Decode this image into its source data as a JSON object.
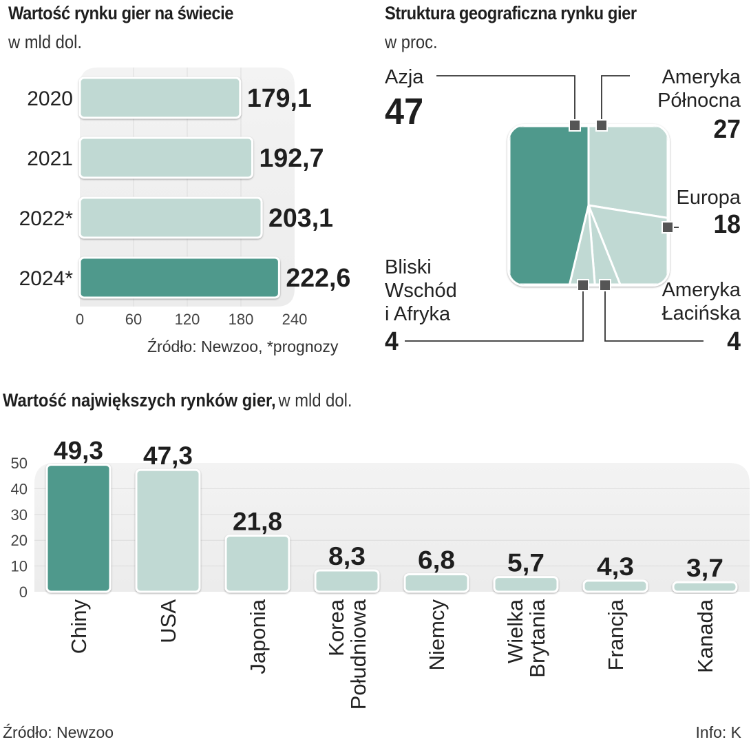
{
  "colors": {
    "highlight": "#4f998c",
    "normal": "#c0d9d3",
    "panel": "#efefef",
    "grid": "#dcdcdc",
    "marker": "#555555"
  },
  "chart_data": [
    {
      "type": "bar",
      "orientation": "horizontal",
      "title": "Wartość rynku gier na świecie",
      "subtitle": "w mld dol.",
      "categories": [
        "2020",
        "2021",
        "2022*",
        "2024*"
      ],
      "values": [
        179.1,
        192.7,
        203.1,
        222.6
      ],
      "value_labels": [
        "179,1",
        "192,7",
        "203,1",
        "222,6"
      ],
      "highlight_index": 3,
      "xlim": [
        0,
        240
      ],
      "xticks": [
        "0",
        "60",
        "120",
        "180",
        "240"
      ],
      "grid": true,
      "source": "Źródło: Newzoo, *prognozy"
    },
    {
      "type": "pie",
      "shape": "rounded-square",
      "title": "Struktura geograficzna rynku gier",
      "subtitle": "w proc.",
      "slices": [
        {
          "name": "Azja",
          "lines": [
            "Azja"
          ],
          "value": 47,
          "label": "47",
          "highlight": true
        },
        {
          "name": "Ameryka Północna",
          "lines": [
            "Ameryka",
            "Północna"
          ],
          "value": 27,
          "label": "27",
          "highlight": false
        },
        {
          "name": "Europa",
          "lines": [
            "Europa"
          ],
          "value": 18,
          "label": "18",
          "highlight": false
        },
        {
          "name": "Ameryka Łacińska",
          "lines": [
            "Ameryka",
            "Łacińska"
          ],
          "value": 4,
          "label": "4",
          "highlight": false
        },
        {
          "name": "Bliski Wschód i Afryka",
          "lines": [
            "Bliski",
            "Wschód",
            "i Afryka"
          ],
          "value": 4,
          "label": "4",
          "highlight": false
        }
      ]
    },
    {
      "type": "bar",
      "orientation": "vertical",
      "title": "Wartość największych rynków gier,",
      "subtitle": "w mld dol.",
      "categories": [
        "Chiny",
        "USA",
        "Japonia",
        "Korea Południowa",
        "Niemcy",
        "Wielka Brytania",
        "Francja",
        "Kanada"
      ],
      "category_lines": [
        [
          "Chiny"
        ],
        [
          "USA"
        ],
        [
          "Japonia"
        ],
        [
          "Korea",
          "Południowa"
        ],
        [
          "Niemcy"
        ],
        [
          "Wielka",
          "Brytania"
        ],
        [
          "Francja"
        ],
        [
          "Kanada"
        ]
      ],
      "values": [
        49.3,
        47.3,
        21.8,
        8.3,
        6.8,
        5.7,
        4.3,
        3.7
      ],
      "value_labels": [
        "49,3",
        "47,3",
        "21,8",
        "8,3",
        "6,8",
        "5,7",
        "4,3",
        "3,7"
      ],
      "highlight_index": 0,
      "ylim": [
        0,
        50
      ],
      "yticks": [
        "0",
        "10",
        "20",
        "30",
        "40",
        "50"
      ],
      "grid": true
    }
  ],
  "footer": {
    "source": "Źródło: Newzoo",
    "info": "Info: K"
  }
}
